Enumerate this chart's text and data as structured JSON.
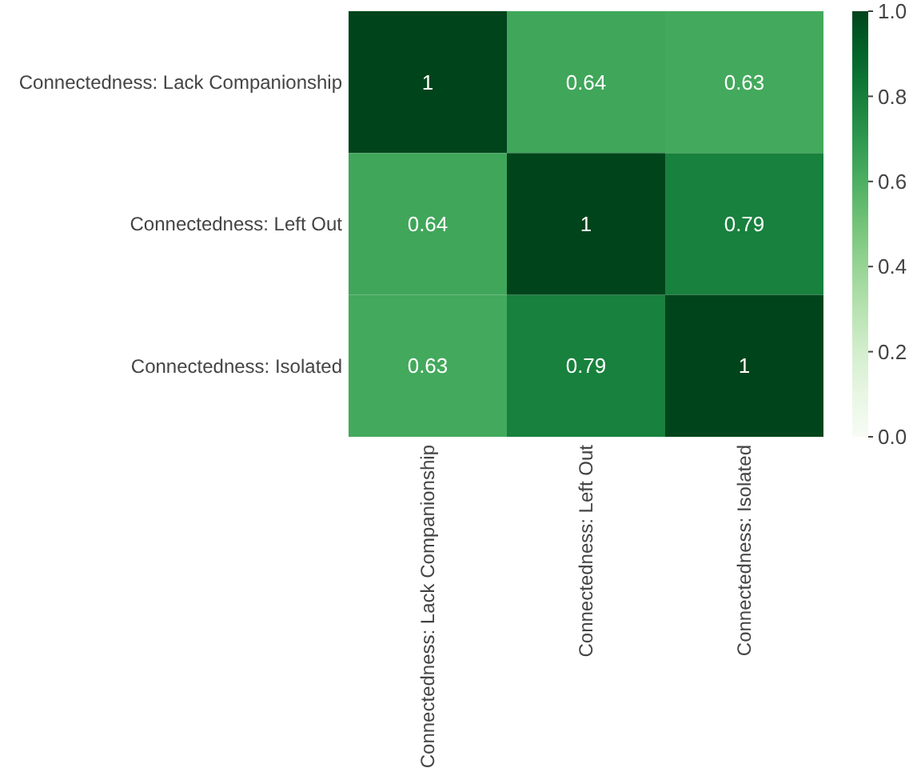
{
  "chart_data": {
    "type": "heatmap",
    "categories": [
      "Connectedness: Lack Companionship",
      "Connectedness: Left Out",
      "Connectedness: Isolated"
    ],
    "y_categories": [
      "Connectedness: Lack Companionship",
      "Connectedness: Left Out",
      "Connectedness: Isolated"
    ],
    "cells": [
      [
        1,
        0.64,
        0.63
      ],
      [
        0.64,
        1,
        0.79
      ],
      [
        0.63,
        0.79,
        1
      ]
    ],
    "clim": [
      0,
      1
    ],
    "cticks": [
      {
        "value": 0,
        "label": "0.0"
      },
      {
        "value": 0.2,
        "label": "0.2"
      },
      {
        "value": 0.4,
        "label": "0.4"
      },
      {
        "value": 0.6,
        "label": "0.6"
      },
      {
        "value": 0.8,
        "label": "0.8"
      },
      {
        "value": 1,
        "label": "1.0"
      }
    ],
    "data_labels": true
  }
}
